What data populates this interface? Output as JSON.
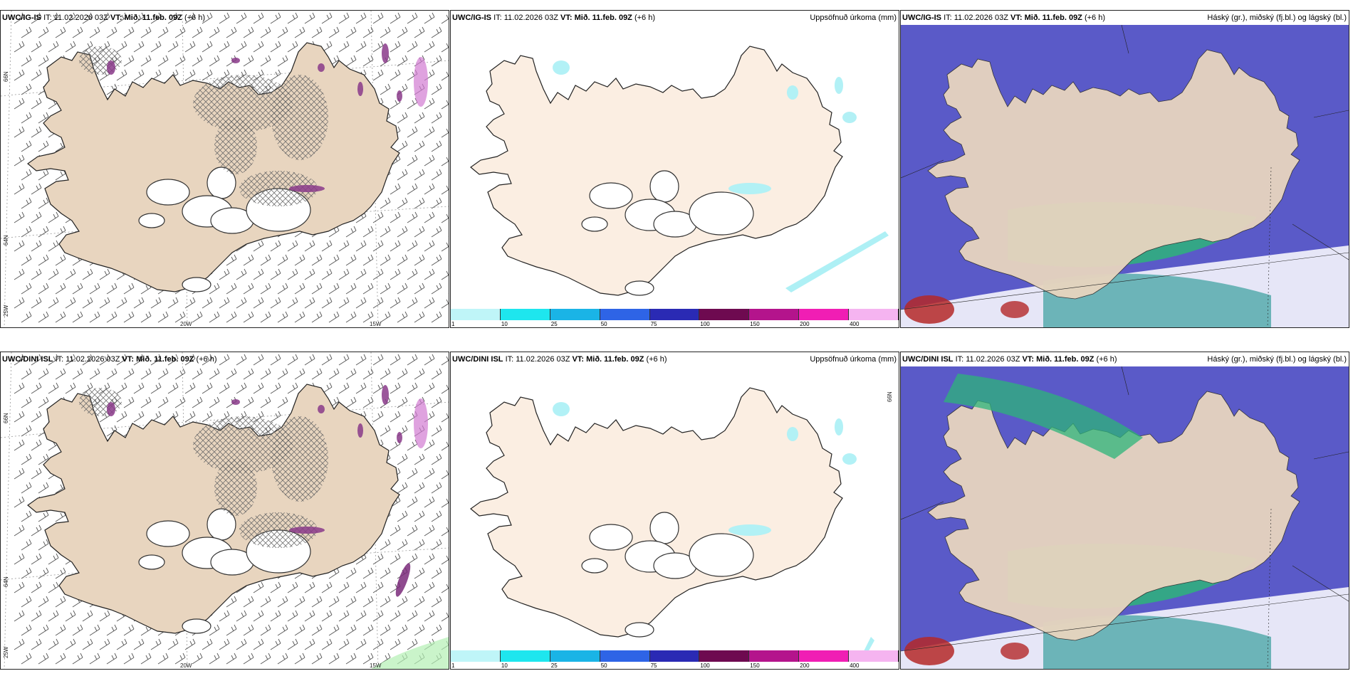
{
  "rows": [
    {
      "model": "UWC/IG-IS",
      "wind_panel": {
        "model": "UWC/IG-IS",
        "it": "IT: 11.02.2026 03Z",
        "vt_label": "VT:",
        "vt": "Mið. 11.feb. 09Z",
        "offset": "(+6 h)",
        "lat_ticks": [
          "66N",
          "64N",
          "25W"
        ],
        "lon_ticks": [
          "20W",
          "15W"
        ]
      },
      "precip_panel": {
        "model": "UWC/IG-IS",
        "it": "IT: 11.02.2026 03Z",
        "vt_label": "VT:",
        "vt": "Mið. 11.feb. 09Z",
        "offset": "(+6 h)",
        "title": "Uppsöfnuð úrkoma (mm)"
      },
      "cloud_panel": {
        "model": "UWC/IG-IS",
        "it": "IT: 11.02.2026 03Z",
        "vt_label": "VT:",
        "vt": "Mið. 11.feb. 09Z",
        "offset": "(+6 h)",
        "title": "Háský (gr.), miðský (fj.bl.) og lágský (bl.)"
      }
    },
    {
      "model": "UWC/DINI ISL",
      "wind_panel": {
        "model": "UWC/DINI ISL",
        "it": "IT: 11.02.2026 03Z",
        "vt_label": "VT:",
        "vt": "Mið. 11.feb. 09Z",
        "offset": "(+6 h)",
        "lat_ticks": [
          "66N",
          "64N",
          "25W"
        ],
        "lon_ticks": [
          "20W",
          "15W"
        ]
      },
      "precip_panel": {
        "model": "UWC/DINI ISL",
        "it": "IT: 11.02.2026 03Z",
        "vt_label": "VT:",
        "vt": "Mið. 11.feb. 09Z",
        "offset": "(+6 h)",
        "title": "Uppsöfnuð úrkoma (mm)",
        "side_tick": "66N"
      },
      "cloud_panel": {
        "model": "UWC/DINI ISL",
        "it": "IT: 11.02.2026 03Z",
        "vt_label": "VT:",
        "vt": "Mið. 11.feb. 09Z",
        "offset": "(+6 h)",
        "title": "Háský (gr.), miðský (fj.bl.) og lágský (bl.)"
      }
    }
  ],
  "precip_colorbar": {
    "labels": [
      "1",
      "10",
      "25",
      "50",
      "75",
      "100",
      "150",
      "200",
      "400"
    ],
    "colors": [
      "#bff5f8",
      "#1ee6ee",
      "#1ab4e6",
      "#2e64e6",
      "#2a2ab4",
      "#6e0a50",
      "#b4148c",
      "#f01eb4",
      "#f5b4f0"
    ]
  },
  "colors": {
    "land": "#e8d5bf",
    "land_light": "#fbeee2",
    "snow": "#ffffff",
    "sea": "#ffffff",
    "precip_cyan": "#aef0f5",
    "cloud_high_green": "#2eb47a",
    "cloud_mid_blue": "#5a5ac8",
    "cloud_low_red": "#b42828"
  }
}
